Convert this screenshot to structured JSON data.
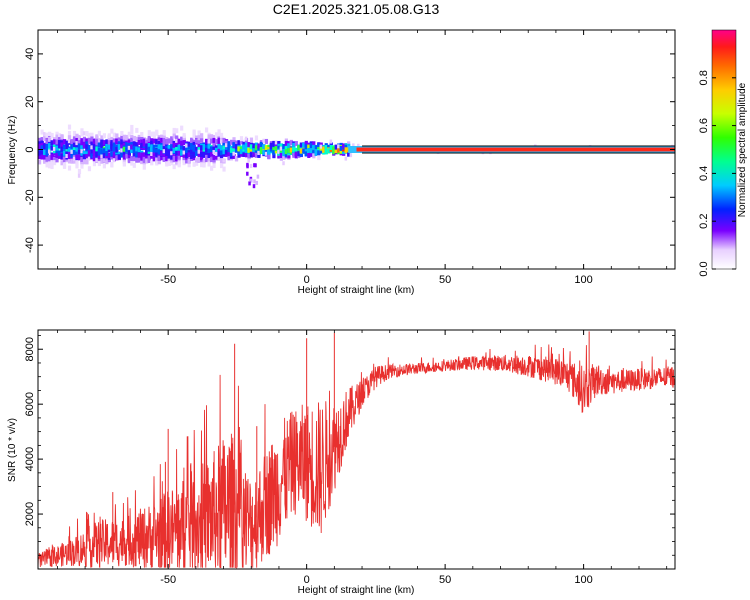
{
  "title": "C2E1.2025.321.05.08.G13",
  "chart_data": [
    {
      "type": "heatmap",
      "xlabel": "Height of straight line (km)",
      "ylabel": "Frequency (Hz)",
      "xlim": [
        -97,
        133
      ],
      "ylim": [
        -50,
        50
      ],
      "xticks": [
        -50,
        0,
        50,
        100
      ],
      "yticks": [
        -40,
        -20,
        0,
        20,
        40
      ],
      "colorbar": {
        "label": "Normalized spectral amplitude",
        "range": [
          0,
          1
        ],
        "ticks": [
          "0.0",
          "0.2",
          "0.4",
          "0.6",
          "0.8"
        ]
      },
      "ridge_frequency_hz": 0,
      "notes": "Energy concentrated near 0 Hz; broad spread (approx. -15 to +15 Hz) below about 15 km, narrow high-amplitude line above."
    },
    {
      "type": "line",
      "xlabel": "Height of straight line (km)",
      "ylabel": "SNR (10 * v/v)",
      "xlim": [
        -97,
        133
      ],
      "ylim": [
        0,
        8700
      ],
      "xticks": [
        -50,
        0,
        50,
        100
      ],
      "yticks": [
        2000,
        4000,
        6000,
        8000
      ],
      "line_color": "#e8302e",
      "series_envelope": {
        "x": [
          -97,
          -85,
          -75,
          -65,
          -55,
          -45,
          -35,
          -28,
          -20,
          -15,
          -10,
          -5,
          0,
          5,
          10,
          15,
          20,
          25,
          30,
          40,
          50,
          60,
          70,
          80,
          90,
          95,
          100,
          105,
          110,
          120,
          133
        ],
        "mean": [
          300,
          600,
          900,
          1000,
          1200,
          1500,
          1900,
          2200,
          1600,
          2300,
          3100,
          3900,
          3900,
          3600,
          4500,
          5600,
          6400,
          7000,
          7200,
          7300,
          7400,
          7500,
          7500,
          7400,
          7200,
          7000,
          6500,
          6900,
          6800,
          6900,
          7000
        ],
        "amplitude": [
          250,
          500,
          900,
          900,
          1300,
          1800,
          2200,
          3000,
          1800,
          2000,
          2200,
          1900,
          2200,
          2600,
          1700,
          1000,
          500,
          400,
          250,
          200,
          200,
          250,
          300,
          400,
          500,
          600,
          900,
          600,
          450,
          400,
          400
        ]
      },
      "peaks": [
        {
          "x": -70,
          "y": 2800
        },
        {
          "x": -51,
          "y": 3900
        },
        {
          "x": -50,
          "y": 5100
        },
        {
          "x": -26,
          "y": 8200
        },
        {
          "x": -18,
          "y": 5200
        },
        {
          "x": 0,
          "y": 8400
        },
        {
          "x": 10,
          "y": 8600
        },
        {
          "x": 102,
          "y": 8650
        }
      ]
    }
  ]
}
